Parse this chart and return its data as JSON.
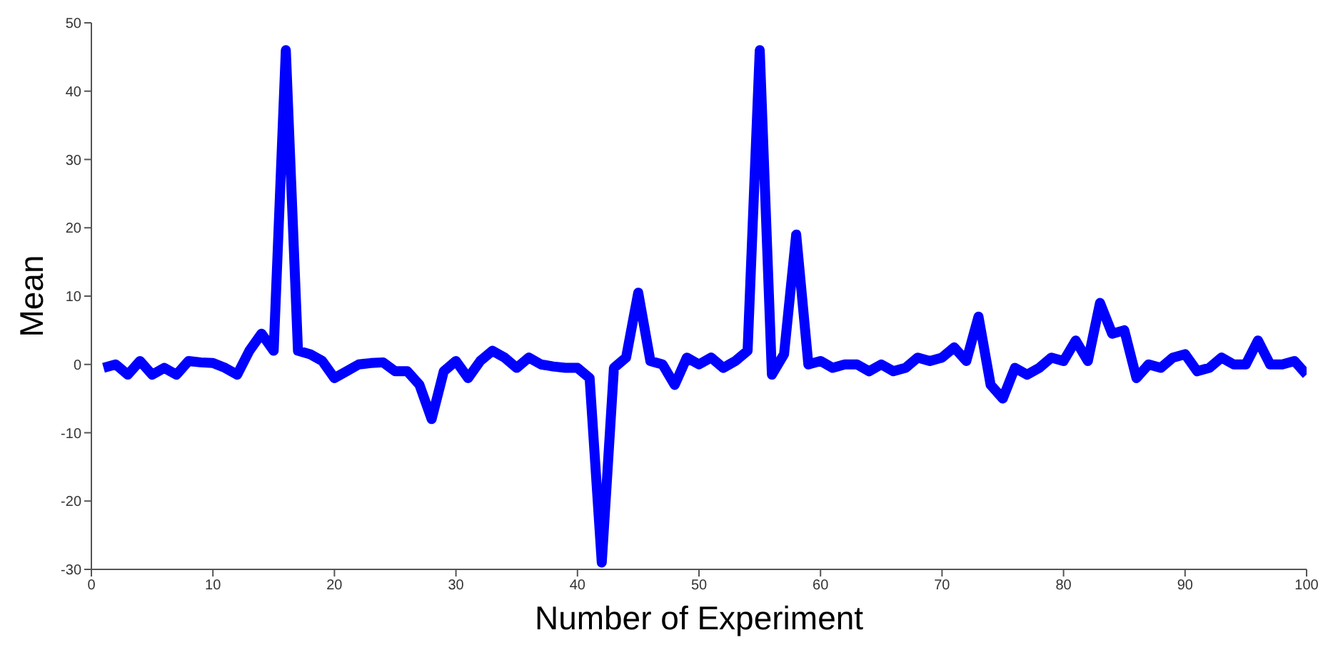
{
  "chart_data": {
    "type": "line",
    "xlabel": "Number of Experiment",
    "ylabel": "Mean",
    "x": [
      1,
      2,
      3,
      4,
      5,
      6,
      7,
      8,
      9,
      10,
      11,
      12,
      13,
      14,
      15,
      16,
      17,
      18,
      19,
      20,
      21,
      22,
      23,
      24,
      25,
      26,
      27,
      28,
      29,
      30,
      31,
      32,
      33,
      34,
      35,
      36,
      37,
      38,
      39,
      40,
      41,
      42,
      43,
      44,
      45,
      46,
      47,
      48,
      49,
      50,
      51,
      52,
      53,
      54,
      55,
      56,
      57,
      58,
      59,
      60,
      61,
      62,
      63,
      64,
      65,
      66,
      67,
      68,
      69,
      70,
      71,
      72,
      73,
      74,
      75,
      76,
      77,
      78,
      79,
      80,
      81,
      82,
      83,
      84,
      85,
      86,
      87,
      88,
      89,
      90,
      91,
      92,
      93,
      94,
      95,
      96,
      97,
      98,
      99,
      100
    ],
    "series": [
      {
        "color": "#0000ff",
        "values": [
          -0.5,
          0,
          -1.5,
          0.5,
          -1.5,
          -0.5,
          -1.5,
          0.5,
          0.3,
          0.2,
          -0.5,
          -1.5,
          2,
          4.5,
          2,
          46,
          2,
          1.5,
          0.5,
          -2,
          -1,
          0,
          0.2,
          0.3,
          -1,
          -1,
          -3,
          -8,
          -1,
          0.5,
          -2,
          0.5,
          2,
          1,
          -0.5,
          1,
          0,
          -0.3,
          -0.5,
          -0.5,
          -2,
          -29,
          -0.5,
          1,
          10.5,
          0.5,
          0,
          -3,
          1,
          0,
          1,
          -0.5,
          0.5,
          2,
          46,
          -1.5,
          1.5,
          19,
          0,
          0.5,
          -0.5,
          0,
          0,
          -1,
          0,
          -1,
          -0.5,
          1,
          0.5,
          1,
          2.5,
          0.5,
          7,
          -3,
          -5,
          -0.5,
          -1.5,
          -0.5,
          1,
          0.5,
          3.5,
          0.5,
          9,
          4.5,
          5,
          -2,
          0,
          -0.5,
          1,
          1.5,
          -1,
          -0.5,
          1,
          0,
          0,
          3.5,
          0,
          0,
          0.5,
          -1.5
        ]
      }
    ],
    "xlim": [
      0,
      100
    ],
    "xticks": [
      0,
      10,
      20,
      30,
      40,
      50,
      60,
      70,
      80,
      90,
      100
    ],
    "ylim": [
      -30,
      50
    ],
    "yticks": [
      -30,
      -20,
      -10,
      0,
      10,
      20,
      30,
      40,
      50
    ],
    "grid": false,
    "marker": "none",
    "line_style": "solid"
  }
}
